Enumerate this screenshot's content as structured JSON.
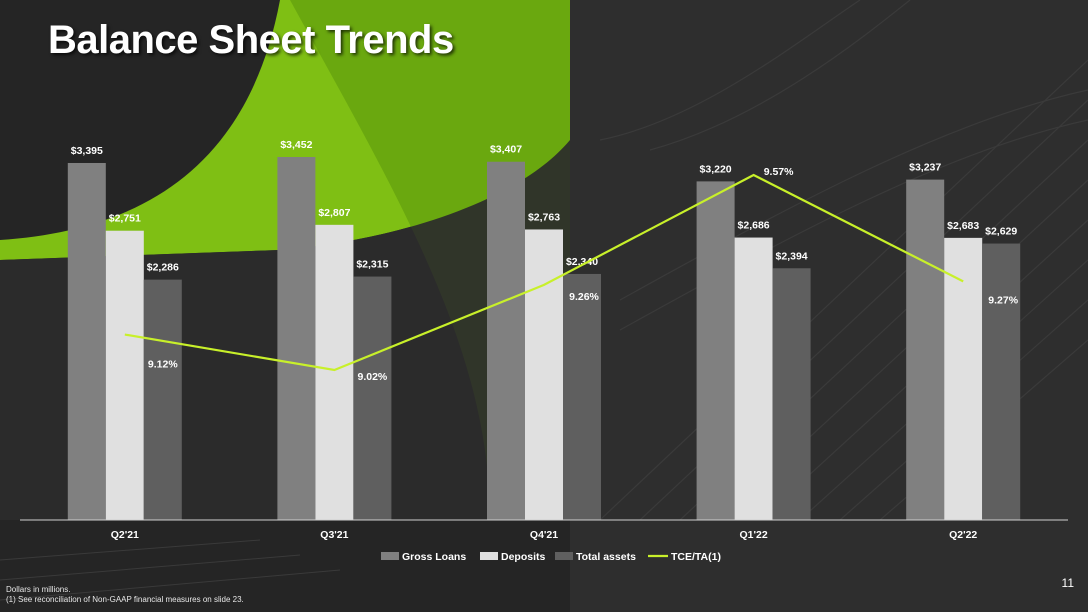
{
  "slide": {
    "title": "Balance Sheet Trends",
    "footnote_1": "Dollars in millions.",
    "footnote_2": "(1) See reconciliation of Non-GAAP financial measures on slide 23.",
    "page_number": "11"
  },
  "colors": {
    "accent": "#8cc814",
    "line": "#c8f02a",
    "gross_loans": "#808080",
    "deposits": "#e0e0e0",
    "total_assets": "#5f5f5f"
  },
  "chart_data": {
    "type": "bar",
    "categories": [
      "Q2'21",
      "Q3'21",
      "Q4'21",
      "Q1'22",
      "Q2'22"
    ],
    "series": [
      {
        "name": "Gross Loans",
        "values": [
          3395,
          3452,
          3407,
          3220,
          3237
        ],
        "labels": [
          "$3,395",
          "$3,452",
          "$3,407",
          "$3,220",
          "$3,237"
        ]
      },
      {
        "name": "Deposits",
        "values": [
          2751,
          2807,
          2763,
          2686,
          2683
        ],
        "labels": [
          "$2,751",
          "$2,807",
          "$2,763",
          "$2,686",
          "$2,683"
        ]
      },
      {
        "name": "Total assets",
        "values": [
          2286,
          2315,
          2340,
          2394,
          2629
        ],
        "labels": [
          "$2,286",
          "$2,315",
          "$2,340",
          "$2,394",
          "$2,629"
        ]
      }
    ],
    "line_series": {
      "name": "TCE/TA(1)",
      "values": [
        9.12,
        9.02,
        9.26,
        9.57,
        9.27
      ],
      "labels": [
        "9.12%",
        "9.02%",
        "9.26%",
        "9.57%",
        "9.27%"
      ]
    },
    "ylim": [
      0,
      4000
    ],
    "line_ylim": [
      8.5,
      9.6
    ],
    "legend_position": "bottom",
    "grid": false
  }
}
